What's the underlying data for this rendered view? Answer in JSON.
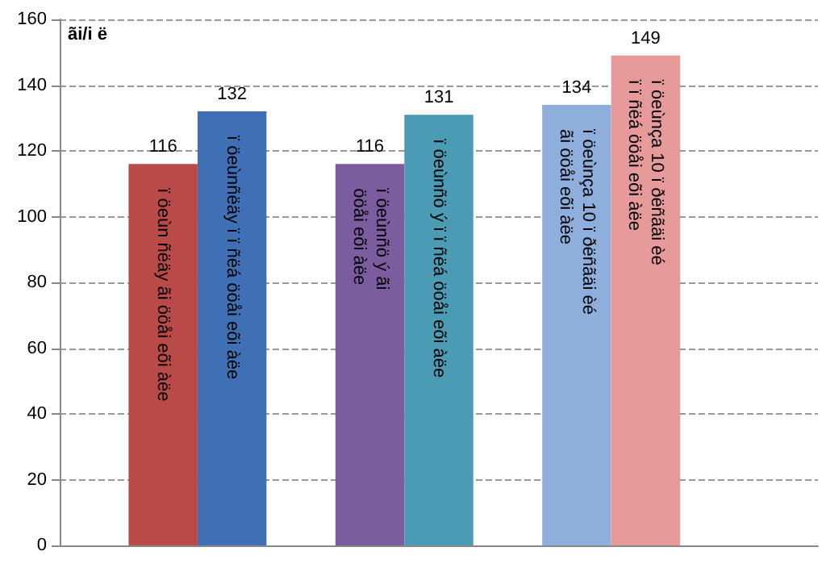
{
  "chart_data": {
    "type": "bar",
    "ylabel": "ãi/i ë",
    "categories": [
      null,
      "ï öeùn ñëäy ãi ööåi eõi àëe",
      "ï öeùnñëäy ï ï ñëá ööåi eõi àëe",
      null,
      "ï öeùnñö ý ãi\nööåi eõi àëe",
      "ï öeùnñö ý ï ï ñëá ööåi eõi àëe",
      null,
      "ï öeùnça 10 ï ðëñãäi èé\nãi ööåi eõi àëe",
      "ï öeùnça 10 ï ðëñãäi èé\nï ï ñëá ööåi eõi àëe",
      null,
      null
    ],
    "values": [
      null,
      116,
      132,
      null,
      116,
      131,
      null,
      134,
      149,
      null,
      null
    ],
    "colors": [
      null,
      "#b94a48",
      "#3f6fb5",
      null,
      "#7b5c9e",
      "#4b9bb5",
      null,
      "#8eaedb",
      "#e69a9a",
      null,
      null
    ],
    "ylim": [
      0,
      160
    ],
    "yticks": [
      0,
      20,
      40,
      60,
      80,
      100,
      120,
      140,
      160
    ],
    "grid": "y",
    "data_labels": true
  }
}
